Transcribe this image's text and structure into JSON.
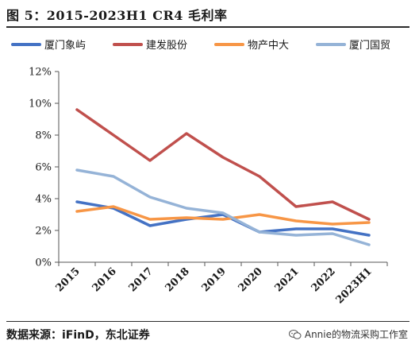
{
  "title": "图 5：2015-2023H1 CR4 毛利率",
  "source": "数据来源：iFinD，东北证券",
  "watermark": "Annie的物流采购工作室",
  "chart_data": {
    "type": "line",
    "title": "",
    "xlabel": "",
    "ylabel": "",
    "categories": [
      "2015",
      "2016",
      "2017",
      "2018",
      "2019",
      "2020",
      "2021",
      "2022",
      "2023H1"
    ],
    "yticks": [
      "0%",
      "2%",
      "4%",
      "6%",
      "8%",
      "10%",
      "12%"
    ],
    "ylim": [
      0,
      12
    ],
    "grid": false,
    "legend_position": "top",
    "series": [
      {
        "name": "厦门象屿",
        "color": "#4472c4",
        "values": [
          3.8,
          3.4,
          2.3,
          2.7,
          3.0,
          1.9,
          2.1,
          2.1,
          1.7
        ]
      },
      {
        "name": "建发股份",
        "color": "#c0504d",
        "values": [
          9.6,
          8.0,
          6.4,
          8.1,
          6.6,
          5.4,
          3.5,
          3.8,
          2.7
        ]
      },
      {
        "name": "物产中大",
        "color": "#f79646",
        "values": [
          3.2,
          3.5,
          2.7,
          2.8,
          2.7,
          3.0,
          2.6,
          2.4,
          2.5
        ]
      },
      {
        "name": "厦门国贸",
        "color": "#95b3d7",
        "values": [
          5.8,
          5.4,
          4.1,
          3.4,
          3.1,
          1.9,
          1.7,
          1.8,
          1.1
        ]
      }
    ]
  }
}
